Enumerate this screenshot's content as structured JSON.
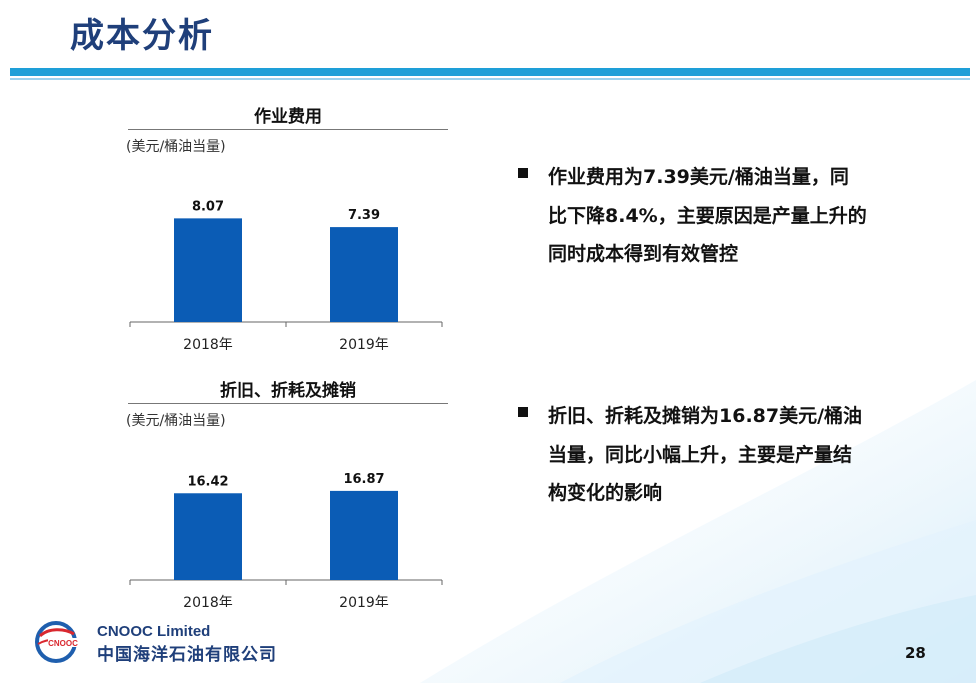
{
  "slide": {
    "title": "成本分析",
    "page_number": "28"
  },
  "colors": {
    "title": "#1f3f7a",
    "header_rule": "#1e9fd8",
    "bar": "#0b5cb5",
    "bullet_text": "#111111"
  },
  "charts": [
    {
      "title": "作业费用",
      "unit": "(美元/桶油当量)"
    },
    {
      "title": "折旧、折耗及摊销",
      "unit": "(美元/桶油当量)"
    }
  ],
  "chart_data": [
    {
      "type": "bar",
      "title": "作业费用",
      "ylabel": "(美元/桶油当量)",
      "categories": [
        "2018年",
        "2019年"
      ],
      "values": [
        8.07,
        7.39
      ],
      "value_labels": [
        "8.07",
        "7.39"
      ],
      "ylim": [
        0,
        9.5
      ],
      "grid": false,
      "legend": "none"
    },
    {
      "type": "bar",
      "title": "折旧、折耗及摊销",
      "ylabel": "(美元/桶油当量)",
      "categories": [
        "2018年",
        "2019年"
      ],
      "values": [
        16.42,
        16.87
      ],
      "value_labels": [
        "16.42",
        "16.87"
      ],
      "ylim": [
        0,
        19.5
      ],
      "grid": false,
      "legend": "none"
    }
  ],
  "bullets": [
    {
      "lines": [
        "作业费用为7.39美元/桶油当量，同",
        "比下降8.4%，主要原因是产量上升的",
        "同时成本得到有效管控"
      ]
    },
    {
      "lines": [
        "折旧、折耗及摊销为16.87美元/桶油",
        "当量，同比小幅上升，主要是产量结",
        "构变化的影响"
      ]
    }
  ],
  "footer": {
    "logo_text": "CNOOC",
    "company_en": "CNOOC Limited",
    "company_cn": "中国海洋石油有限公司"
  }
}
